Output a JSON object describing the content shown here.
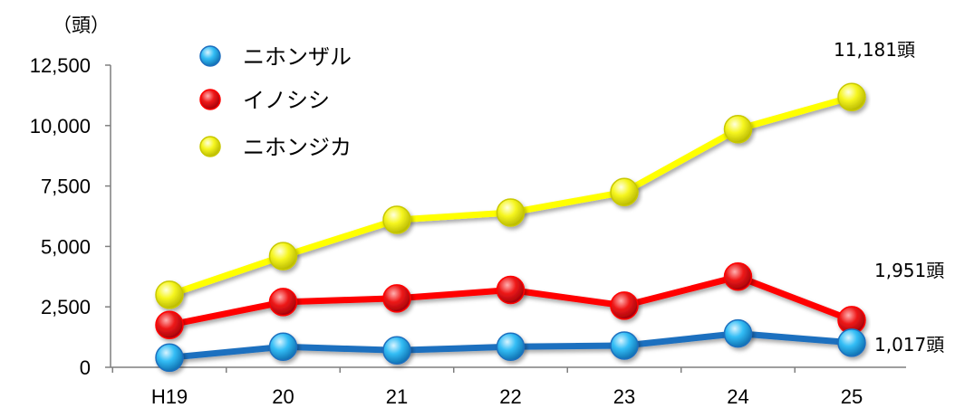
{
  "chart_data": {
    "type": "line",
    "title": "",
    "xlabel": "",
    "ylabel": "",
    "y_unit_label": "（頭）",
    "categories": [
      "H19",
      "20",
      "21",
      "22",
      "23",
      "24",
      "25"
    ],
    "ylim": [
      0,
      12500
    ],
    "yticks": [
      "0",
      "2,500",
      "5,000",
      "7,500",
      "10,000",
      "12,500"
    ],
    "ytick_values": [
      0,
      2500,
      5000,
      7500,
      10000,
      12500
    ],
    "grid": false,
    "legend_position": "top-left",
    "series": [
      {
        "name": "ニホンザル",
        "color": "#1f6fbf",
        "marker_color": "#2ab0ef",
        "values": [
          400,
          850,
          700,
          850,
          900,
          1400,
          1017
        ],
        "end_label": "1,017頭"
      },
      {
        "name": "イノシシ",
        "color": "#ff0000",
        "marker_color": "#e8101a",
        "values": [
          1750,
          2700,
          2850,
          3200,
          2550,
          3750,
          1951
        ],
        "end_label": "1,951頭"
      },
      {
        "name": "ニホンジカ",
        "color": "#ffff00",
        "marker_color": "#f2f21a",
        "values": [
          3000,
          4600,
          6100,
          6400,
          7250,
          9850,
          11181
        ],
        "end_label": "11,181頭"
      }
    ]
  }
}
